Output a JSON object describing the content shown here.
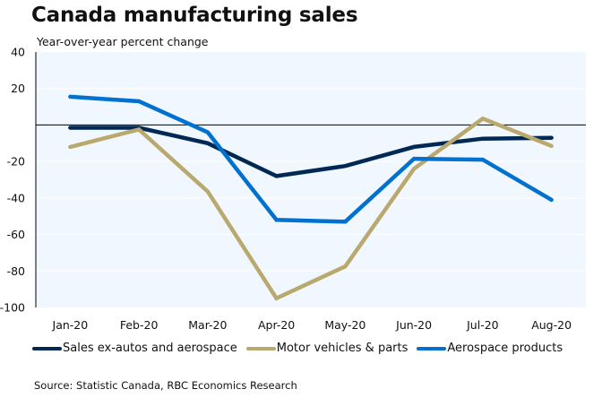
{
  "chart_data": {
    "type": "line",
    "title": "Canada manufacturing sales",
    "subtitle": "Year-over-year percent change",
    "xlabel": "",
    "ylabel": "Year-over-year percent change",
    "categories": [
      "Jan-20",
      "Feb-20",
      "Mar-20",
      "Apr-20",
      "May-20",
      "Jun-20",
      "Jul-20",
      "Aug-20"
    ],
    "ylim": [
      -100,
      40
    ],
    "yticks": [
      40,
      20,
      0,
      -20,
      -40,
      -60,
      -80,
      -100
    ],
    "ytick_labels": [
      "40",
      "20",
      "",
      "-20",
      "-40",
      "-60",
      "-80",
      "-100"
    ],
    "grid": true,
    "zero_line": true,
    "legend_position": "bottom",
    "series": [
      {
        "name": "Sales ex-autos and aerospace",
        "color": "#002855",
        "values": [
          -1.5,
          -1.5,
          -10,
          -28,
          -22.5,
          -12,
          -7.5,
          -7
        ]
      },
      {
        "name": "Motor vehicles & parts",
        "color": "#B9A96E",
        "values": [
          -12,
          -2.5,
          -36.5,
          -95,
          -77.5,
          -24,
          3.5,
          -11.5
        ]
      },
      {
        "name": "Aerospace products",
        "color": "#0071CE",
        "values": [
          15.5,
          13,
          -4,
          -52,
          -53,
          -18.5,
          -19,
          -41
        ]
      }
    ],
    "source": "Source: Statistic Canada, RBC Economics Research"
  },
  "colors": {
    "plot_background": "#F0F7FF",
    "gridline": "#FFFFFF",
    "axis": "#000000"
  }
}
